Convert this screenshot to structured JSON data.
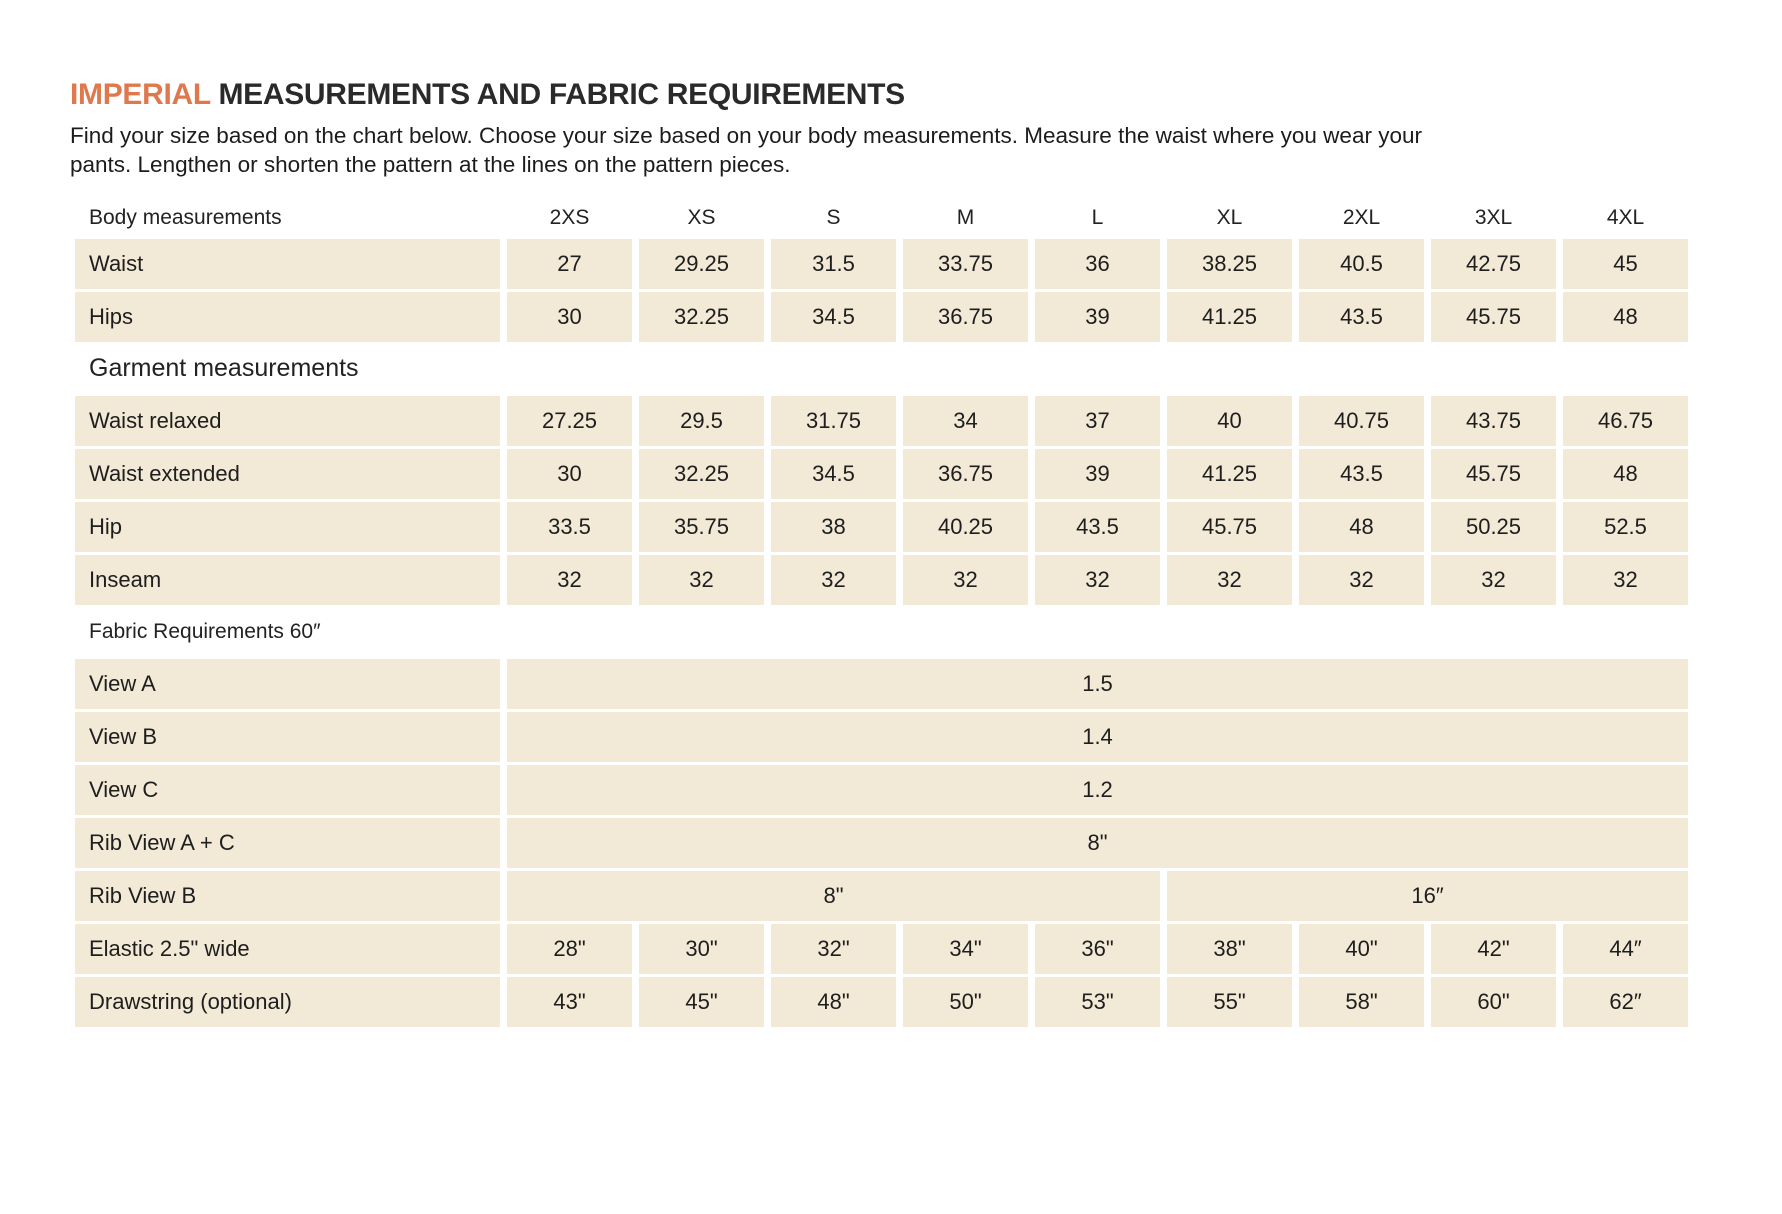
{
  "title": {
    "highlight": "IMPERIAL",
    "rest": " MEASUREMENTS AND FABRIC REQUIREMENTS"
  },
  "intro": {
    "line1": "Find your size based on the chart below. Choose your size based on your body measurements. Measure the waist where you wear your",
    "line2": "pants. Lengthen or shorten the pattern at the lines on the pattern pieces."
  },
  "colors": {
    "accent_orange": "#e0784d",
    "cell_beige": "#f2e9d6",
    "text_dark": "#1e1e1e"
  },
  "sizes": [
    "2XS",
    "XS",
    "S",
    "M",
    "L",
    "XL",
    "2XL",
    "3XL",
    "4XL"
  ],
  "table": {
    "rows": [
      {
        "type": "header",
        "label": "Body measurements"
      },
      {
        "type": "data",
        "label": "Waist",
        "values": [
          "27",
          "29.25",
          "31.5",
          "33.75",
          "36",
          "38.25",
          "40.5",
          "42.75",
          "45"
        ]
      },
      {
        "type": "data",
        "label": "Hips",
        "values": [
          "30",
          "32.25",
          "34.5",
          "36.75",
          "39",
          "41.25",
          "43.5",
          "45.75",
          "48"
        ]
      },
      {
        "type": "section",
        "style": "large",
        "label": "Garment measurements"
      },
      {
        "type": "data",
        "label": "Waist relaxed",
        "values": [
          "27.25",
          "29.5",
          "31.75",
          "34",
          "37",
          "40",
          "40.75",
          "43.75",
          "46.75"
        ]
      },
      {
        "type": "data",
        "label": "Waist extended",
        "values": [
          "30",
          "32.25",
          "34.5",
          "36.75",
          "39",
          "41.25",
          "43.5",
          "45.75",
          "48"
        ]
      },
      {
        "type": "data",
        "label": "Hip",
        "values": [
          "33.5",
          "35.75",
          "38",
          "40.25",
          "43.5",
          "45.75",
          "48",
          "50.25",
          "52.5"
        ]
      },
      {
        "type": "data",
        "label": "Inseam",
        "values": [
          "32",
          "32",
          "32",
          "32",
          "32",
          "32",
          "32",
          "32",
          "32"
        ]
      },
      {
        "type": "section",
        "style": "small",
        "label": "Fabric Requirements 60″"
      },
      {
        "type": "merged",
        "label": "View A",
        "value": "1.5"
      },
      {
        "type": "merged",
        "label": "View B",
        "value": "1.4"
      },
      {
        "type": "merged",
        "label": "View C",
        "value": "1.2"
      },
      {
        "type": "merged",
        "label": "Rib View A + C",
        "value": "8\""
      },
      {
        "type": "split",
        "label": "Rib View B",
        "cells": [
          {
            "value": "8\"",
            "span": 5
          },
          {
            "value": "16″",
            "span": 4
          }
        ]
      },
      {
        "type": "data",
        "label": "Elastic 2.5\" wide",
        "values": [
          "28\"",
          "30\"",
          "32\"",
          "34\"",
          "36\"",
          "38\"",
          "40\"",
          "42\"",
          "44″"
        ]
      },
      {
        "type": "data",
        "label": "Drawstring (optional)",
        "values": [
          "43\"",
          "45\"",
          "48\"",
          "50\"",
          "53\"",
          "55\"",
          "58\"",
          "60\"",
          "62″"
        ]
      }
    ]
  }
}
